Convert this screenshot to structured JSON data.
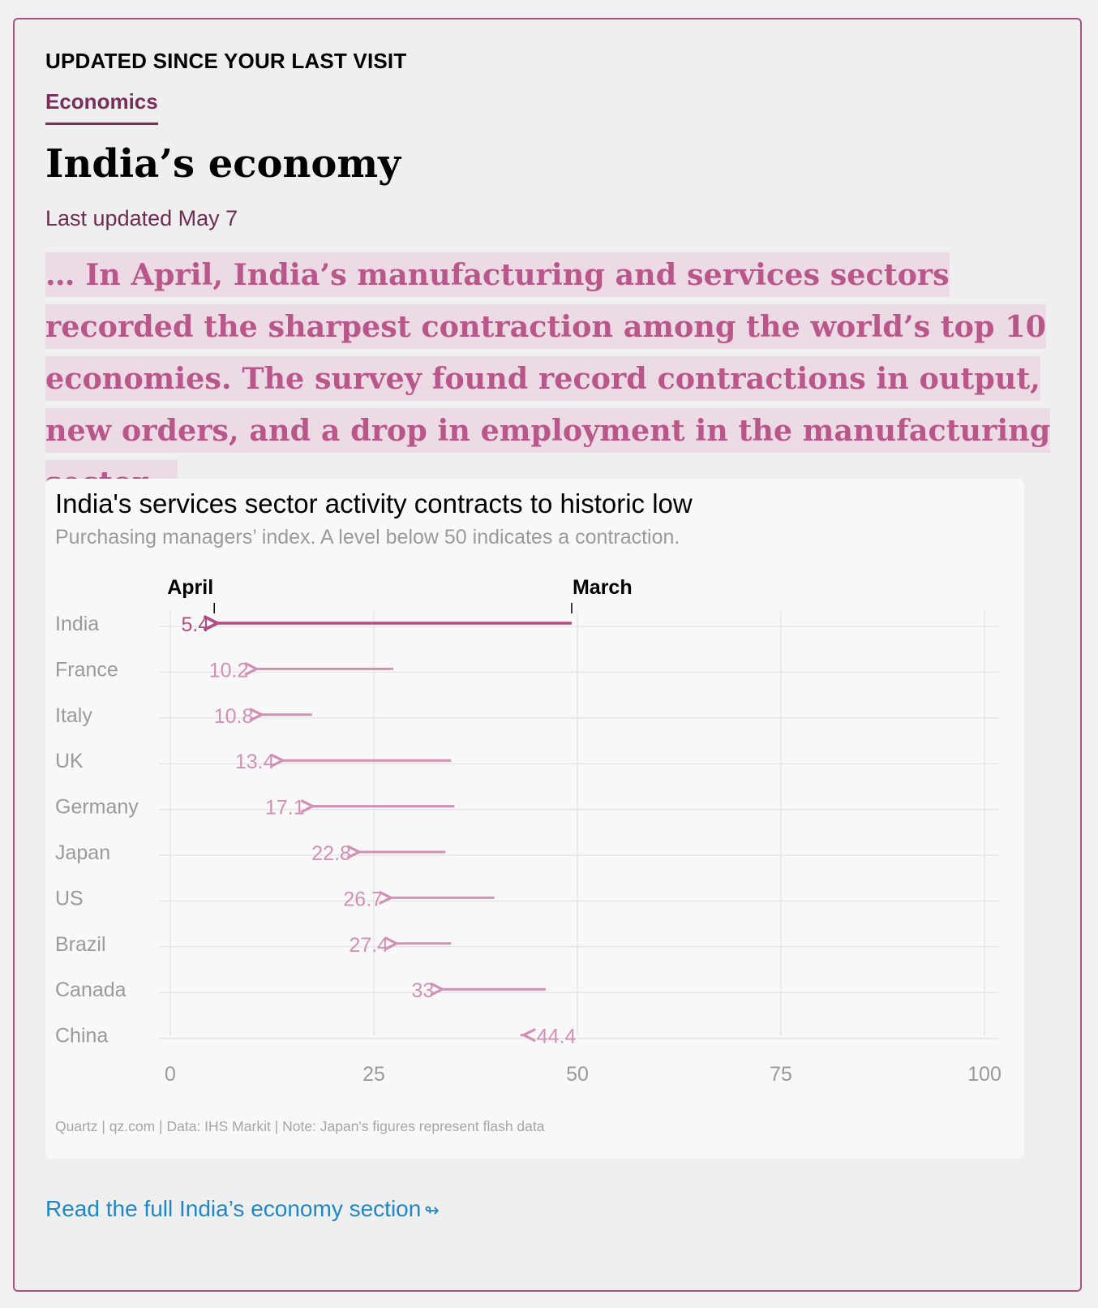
{
  "card": {
    "eyebrow": "UPDATED SINCE YOUR LAST VISIT",
    "section": "Economics",
    "headline": "India’s economy",
    "updated": "Last updated May 7",
    "quote": "… In April, India’s manufacturing and services sectors recorded the sharpest contraction among the world’s top 10 economies. The survey found record contractions in output, new orders, and a drop in employment in the manufacturing sector…",
    "read_more": "Read the full India’s economy section",
    "read_more_icon": "arrow-right-icon"
  },
  "colors": {
    "accent": "#7a2f5a",
    "border": "#a4567f",
    "quote_text": "#b9578a",
    "quote_highlight": "#ecdae4",
    "arrow_primary": "#b24d84",
    "arrow_secondary": "#d290b5",
    "link": "#1e87c7"
  },
  "chart_data": {
    "type": "arrow-dot",
    "title": "India's services sector activity contracts to historic low",
    "subtitle": "Purchasing managers’ index. A level below 50 indicates a contraction.",
    "source": "Quartz | qz.com | Data: IHS Markit | Note: Japan's figures represent flash data",
    "legend": {
      "start_label": "March",
      "end_label": "April"
    },
    "x_ticks": [
      0,
      25,
      50,
      75,
      100
    ],
    "xlim": [
      0,
      100
    ],
    "grid": true,
    "rows": [
      {
        "country": "India",
        "march": 49.3,
        "april": 5.4,
        "label": "5.4"
      },
      {
        "country": "France",
        "march": 27.4,
        "april": 10.2,
        "label": "10.2"
      },
      {
        "country": "Italy",
        "march": 17.4,
        "april": 10.8,
        "label": "10.8"
      },
      {
        "country": "UK",
        "march": 34.5,
        "april": 13.4,
        "label": "13.4"
      },
      {
        "country": "Germany",
        "march": 34.9,
        "april": 17.1,
        "label": "17.1"
      },
      {
        "country": "Japan",
        "march": 33.8,
        "april": 22.8,
        "label": "22.8"
      },
      {
        "country": "US",
        "march": 39.8,
        "april": 26.7,
        "label": "26.7"
      },
      {
        "country": "Brazil",
        "march": 34.5,
        "april": 27.4,
        "label": "27.4"
      },
      {
        "country": "Canada",
        "march": 46.1,
        "april": 33,
        "label": "33"
      },
      {
        "country": "China",
        "march": 43.0,
        "april": 44.4,
        "label": "44.4"
      }
    ]
  }
}
